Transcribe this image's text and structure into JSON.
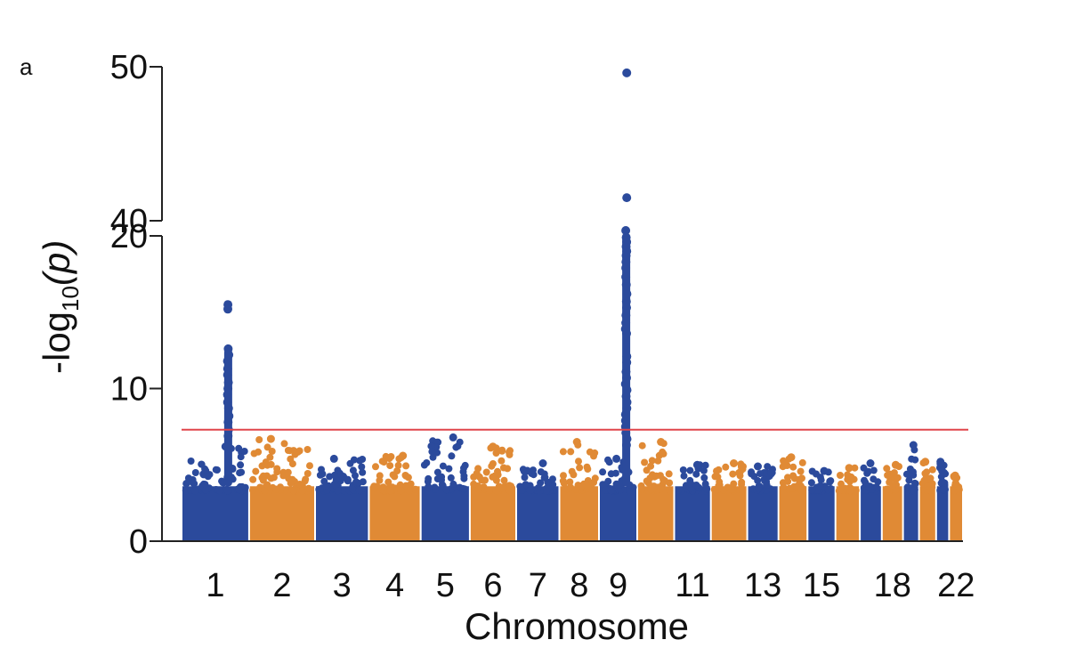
{
  "panel_label": "a",
  "colors": {
    "blue": "#2B4A9C",
    "orange": "#E08A35",
    "threshold": "#E0454B",
    "axis": "#222222"
  },
  "chart_data": {
    "type": "scatter",
    "subtype": "manhattan",
    "title": "",
    "xlabel": "Chromosome",
    "ylabel_main": "-log",
    "ylabel_sub": "10",
    "ylabel_arg": "(p)",
    "ylim_lower": [
      0,
      20
    ],
    "ylim_upper": [
      40,
      50
    ],
    "y_ticks_lower": [
      0,
      10,
      20
    ],
    "y_ticks_upper": [
      40,
      50
    ],
    "y_tick_labels": [
      "0",
      "10",
      "20",
      "40",
      "50"
    ],
    "broken_y_axis": true,
    "threshold": 7.3,
    "x_tick_labels": [
      "1",
      "2",
      "3",
      "4",
      "5",
      "6",
      "7",
      "8",
      "9",
      "11",
      "13",
      "15",
      "18",
      "22"
    ],
    "grid": false,
    "legend": "none",
    "chromosomes": [
      {
        "chr": "1",
        "max": 6.2,
        "color": "blue"
      },
      {
        "chr": "2",
        "max": 6.7,
        "color": "orange"
      },
      {
        "chr": "3",
        "max": 5.4,
        "color": "blue"
      },
      {
        "chr": "4",
        "max": 5.6,
        "color": "orange"
      },
      {
        "chr": "5",
        "max": 6.8,
        "color": "blue"
      },
      {
        "chr": "6",
        "max": 6.2,
        "color": "orange"
      },
      {
        "chr": "7",
        "max": 5.1,
        "color": "blue"
      },
      {
        "chr": "8",
        "max": 6.5,
        "color": "orange"
      },
      {
        "chr": "9",
        "max": 5.4,
        "color": "blue"
      },
      {
        "chr": "10",
        "max": 6.5,
        "color": "orange"
      },
      {
        "chr": "11",
        "max": 5.0,
        "color": "blue"
      },
      {
        "chr": "12",
        "max": 5.1,
        "color": "orange"
      },
      {
        "chr": "13",
        "max": 4.9,
        "color": "blue"
      },
      {
        "chr": "14",
        "max": 5.5,
        "color": "orange"
      },
      {
        "chr": "15",
        "max": 4.6,
        "color": "blue"
      },
      {
        "chr": "16",
        "max": 4.8,
        "color": "orange"
      },
      {
        "chr": "17",
        "max": 5.1,
        "color": "blue"
      },
      {
        "chr": "18",
        "max": 5.0,
        "color": "orange"
      },
      {
        "chr": "19",
        "max": 6.3,
        "color": "blue"
      },
      {
        "chr": "20",
        "max": 5.2,
        "color": "orange"
      },
      {
        "chr": "21",
        "max": 5.2,
        "color": "blue"
      },
      {
        "chr": "22",
        "max": 4.3,
        "color": "orange"
      }
    ],
    "peaks": [
      {
        "chr": "1",
        "values": [
          15.5,
          15.2,
          12.6,
          12.2,
          11.8,
          11.3,
          10.9,
          10.4,
          10.0,
          9.6,
          9.1,
          8.7,
          8.2,
          7.8,
          7.3,
          6.9
        ]
      },
      {
        "chr": "9",
        "values": [
          49.6,
          41.5,
          20.2,
          19.9,
          19.6,
          19.3,
          19.0,
          18.7,
          18.3,
          17.9,
          17.3,
          16.8,
          16.2,
          15.7,
          15.3,
          14.8,
          14.3,
          13.9,
          13.6,
          12.1,
          11.7,
          11.1,
          10.7,
          10.3,
          9.9,
          9.5,
          9.1,
          8.7,
          8.3,
          7.9,
          7.5,
          7.1,
          6.7,
          6.3
        ]
      }
    ]
  }
}
